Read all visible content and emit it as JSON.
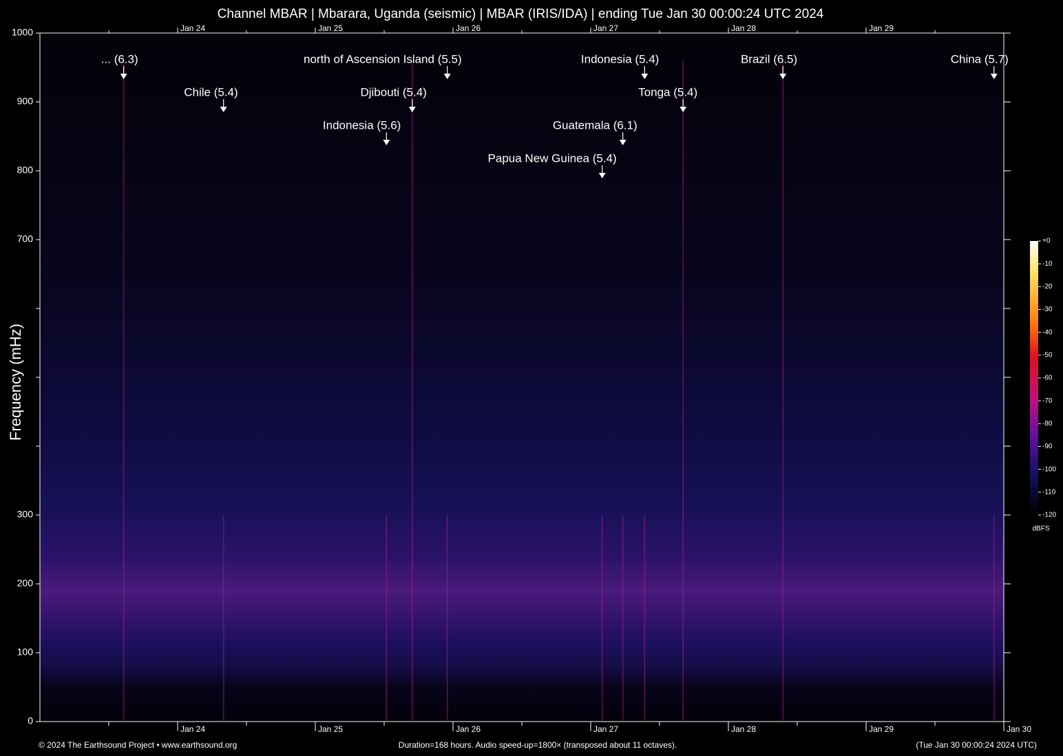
{
  "chart_data": {
    "type": "spectrogram",
    "title": "Channel MBAR | Mbarara, Uganda (seismic) | MBAR (IRIS/IDA) | ending Tue Jan 30 00:00:24 UTC 2024",
    "ylabel": "Frequency (mHz)",
    "ylim": [
      0,
      1000
    ],
    "yticks": [
      0,
      100,
      200,
      300,
      700,
      800,
      900,
      1000
    ],
    "yminor": [
      400,
      500,
      600
    ],
    "xlim": [
      0,
      168
    ],
    "xticks": [
      {
        "value": 24,
        "label": "Jan 24"
      },
      {
        "value": 48,
        "label": "Jan 25"
      },
      {
        "value": 72,
        "label": "Jan 26"
      },
      {
        "value": 96,
        "label": "Jan 27"
      },
      {
        "value": 120,
        "label": "Jan 28"
      },
      {
        "value": 144,
        "label": "Jan 29"
      },
      {
        "value": 168,
        "label": "Jan 30"
      }
    ],
    "xminor": [
      12,
      36,
      60,
      84,
      108,
      132,
      156
    ],
    "events": [
      {
        "label": "... (6.3)",
        "x": 14.6
      },
      {
        "label": "Chile (5.4)",
        "x": 32.0
      },
      {
        "label": "north of Ascension Island (5.5)",
        "x": 71.0
      },
      {
        "label": "Djibouti (5.4)",
        "x": 64.9
      },
      {
        "label": "Indonesia (5.6)",
        "x": 60.4
      },
      {
        "label": "Indonesia (5.4)",
        "x": 105.4
      },
      {
        "label": "Tonga (5.4)",
        "x": 112.1
      },
      {
        "label": "Guatemala (6.1)",
        "x": 101.6
      },
      {
        "label": "Papua New Guinea (5.4)",
        "x": 98.0
      },
      {
        "label": "Brazil (6.5)",
        "x": 129.5
      },
      {
        "label": "China (5.7)",
        "x": 166.3
      }
    ],
    "colorbar": {
      "label": "dBFS",
      "lim": [
        -120,
        0
      ],
      "ticks": [
        {
          "value": 0,
          "label": "+0"
        },
        -10,
        -20,
        -30,
        -40,
        -50,
        -60,
        -70,
        -80,
        -90,
        -100,
        -110,
        -120
      ]
    },
    "footer": {
      "left": "© 2024 The Earthsound Project • www.earthsound.org",
      "center": "Duration=168 hours. Audio speed-up=1800× (transposed about 11 octaves).",
      "right": "(Tue Jan 30 00:00:24 2024 UTC)"
    }
  }
}
